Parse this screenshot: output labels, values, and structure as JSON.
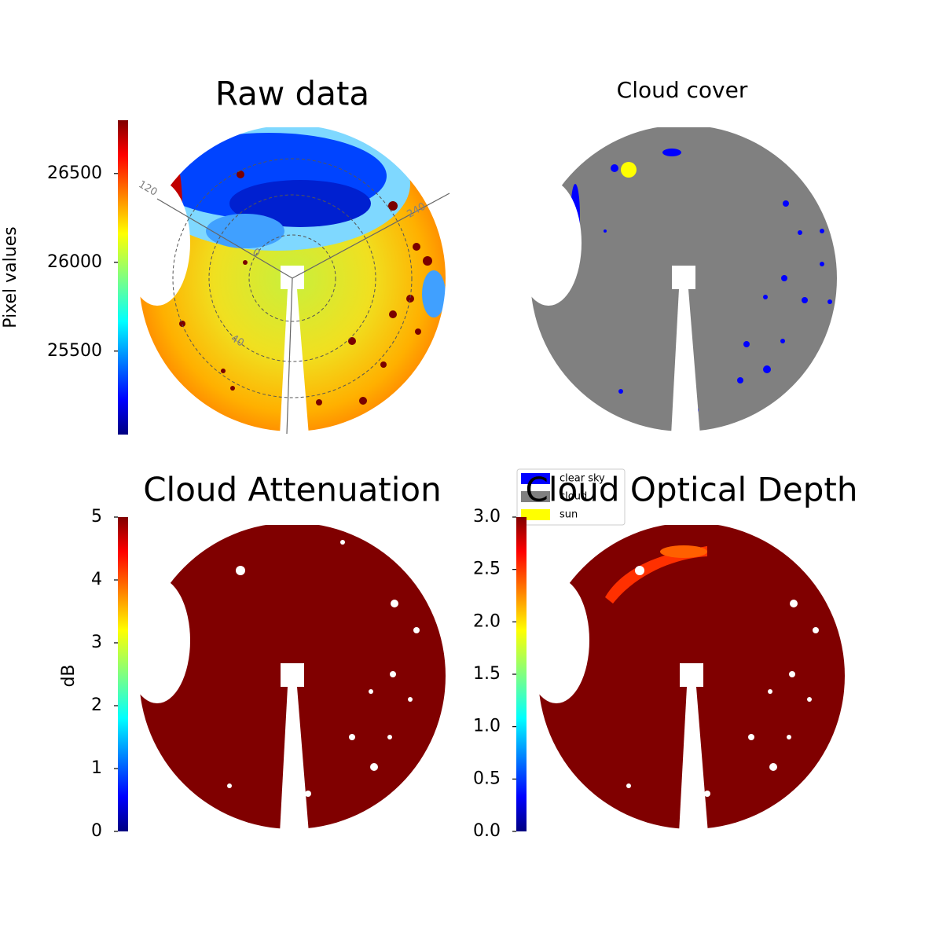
{
  "chart_data": [
    {
      "type": "image",
      "title": "Raw data",
      "colorbar": {
        "label": "Pixel values",
        "cmap": "jet",
        "ylim": [
          25030,
          26800
        ],
        "yticks": [
          25500,
          26000,
          26500
        ]
      },
      "annotations": [
        "120",
        "240",
        "0",
        "40"
      ]
    },
    {
      "type": "image",
      "title": "Cloud cover",
      "legend": {
        "loc": "lower left",
        "items": [
          {
            "name": "clear sky",
            "color": "#0000ff"
          },
          {
            "name": "cloud",
            "color": "#808080"
          },
          {
            "name": "sun",
            "color": "#ffff00"
          }
        ]
      }
    },
    {
      "type": "image",
      "title": "Cloud Attenuation",
      "colorbar": {
        "label": "dB",
        "cmap": "jet",
        "ylim": [
          0,
          5
        ],
        "yticks": [
          0,
          1,
          2,
          3,
          4,
          5
        ]
      }
    },
    {
      "type": "image",
      "title": "Cloud Optical Depth",
      "colorbar": {
        "cmap": "jet",
        "ylim": [
          0,
          3
        ],
        "yticks": [
          {
            "value": 0,
            "label": "0.0"
          },
          0.5,
          {
            "value": 1,
            "label": "1.0"
          },
          1.5,
          {
            "value": 2,
            "label": "2.0"
          },
          2.5,
          {
            "value": 3,
            "label": "3.0"
          }
        ]
      }
    }
  ]
}
